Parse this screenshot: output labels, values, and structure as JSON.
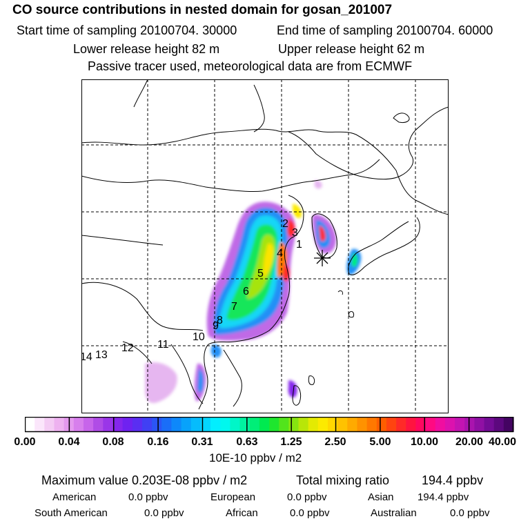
{
  "header": {
    "title": "CO  source contributions in nested domain for gosan_201007",
    "start_time": "Start time of sampling 20100704. 30000",
    "end_time": "End time of sampling 20100704. 60000",
    "lower_height": "Lower release height   82 m",
    "upper_height": "Upper release height   62 m",
    "note": "Passive tracer used, meteorological data are from ECMWF"
  },
  "map": {
    "region_labels": [
      "1",
      "2",
      "3",
      "4",
      "5",
      "6",
      "7",
      "8",
      "9",
      "10",
      "11",
      "12",
      "13",
      "14"
    ],
    "receptor_marker": "asterisk-marker"
  },
  "colorbar": {
    "ticks": [
      "0.00",
      "0.04",
      "0.08",
      "0.16",
      "0.31",
      "0.63",
      "1.25",
      "2.50",
      "5.00",
      "10.00",
      "20.00",
      "40.00"
    ],
    "unit": "10E-10 ppbv / m2",
    "colors": [
      "#ffffff",
      "#fbe6fb",
      "#f4ccf4",
      "#eeb2f0",
      "#e499ee",
      "#d77fec",
      "#c765ea",
      "#b04ce6",
      "#9a36e8",
      "#8526ec",
      "#6f22f0",
      "#5a2ef2",
      "#4040f4",
      "#2b55f6",
      "#1a6ef8",
      "#0e88fa",
      "#08a2fb",
      "#06bcfc",
      "#04d6fd",
      "#02eefe",
      "#00f8ee",
      "#00f6c8",
      "#00f2a0",
      "#00ee78",
      "#00ea50",
      "#1ee62e",
      "#52e41c",
      "#86e410",
      "#b8e608",
      "#e4ea02",
      "#fcea00",
      "#ffd800",
      "#ffc200",
      "#ffaa00",
      "#ff9200",
      "#ff7800",
      "#ff5e00",
      "#ff4410",
      "#ff2a28",
      "#ff1440",
      "#ff0860",
      "#ff0a82",
      "#f00ea0",
      "#dc12ae",
      "#c414b2",
      "#aa14ae",
      "#9010a4",
      "#740c96",
      "#5c087e",
      "#440462"
    ]
  },
  "summary": {
    "max_label": "Maximum value  0.203E-08 ppbv / m2",
    "total_label": "Total mixing ratio",
    "total_value": "194.4 ppbv",
    "american_label": "American",
    "american_value": "0.0 ppbv",
    "european_label": "European",
    "european_value": "0.0 ppbv",
    "asian_label": "Asian",
    "asian_value": "194.4 ppbv",
    "south_american_label": "South American",
    "south_american_value": "0.0 ppbv",
    "african_label": "African",
    "african_value": "0.0 ppbv",
    "australian_label": "Australian",
    "australian_value": "0.0 ppbv"
  }
}
